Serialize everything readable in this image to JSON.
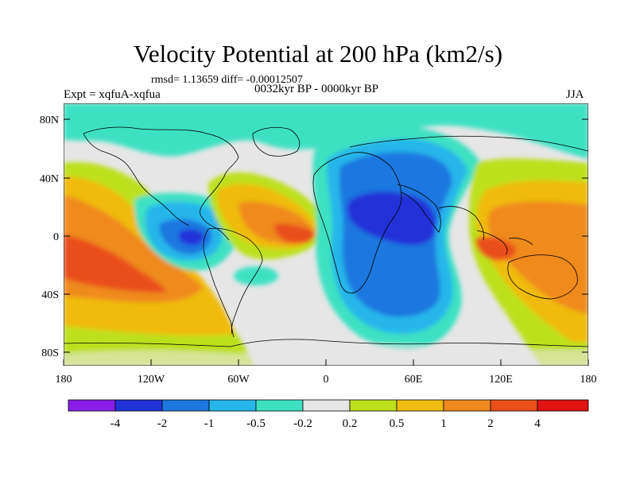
{
  "title": "Velocity Potential at 200 hPa (km2/s)",
  "stats": "rmsd= 1.13659 diff= -0.00012507",
  "experiment": "Expt = xqfuA-xqfua",
  "period": "0032kyr BP - 0000kyr BP",
  "season": "JJA",
  "y_axis_labels": [
    "80N",
    "40N",
    "0",
    "40S",
    "80S"
  ],
  "x_axis_labels": [
    "180",
    "120W",
    "60W",
    "0",
    "60E",
    "120E",
    "180"
  ],
  "colorbar": {
    "labels": [
      "-4",
      "-2",
      "-1",
      "-0.5",
      "-0.2",
      "0.2",
      "0.5",
      "1",
      "2",
      "4"
    ],
    "colors": [
      "#8a1ee6",
      "#2233d8",
      "#1e77e0",
      "#27b6ea",
      "#3de1c2",
      "#e6e6e6",
      "#bde01a",
      "#f0bb10",
      "#ef8a1e",
      "#e9501a",
      "#e01212"
    ]
  },
  "palette": {
    "land_outline": "#000000",
    "frame": "#000000"
  }
}
